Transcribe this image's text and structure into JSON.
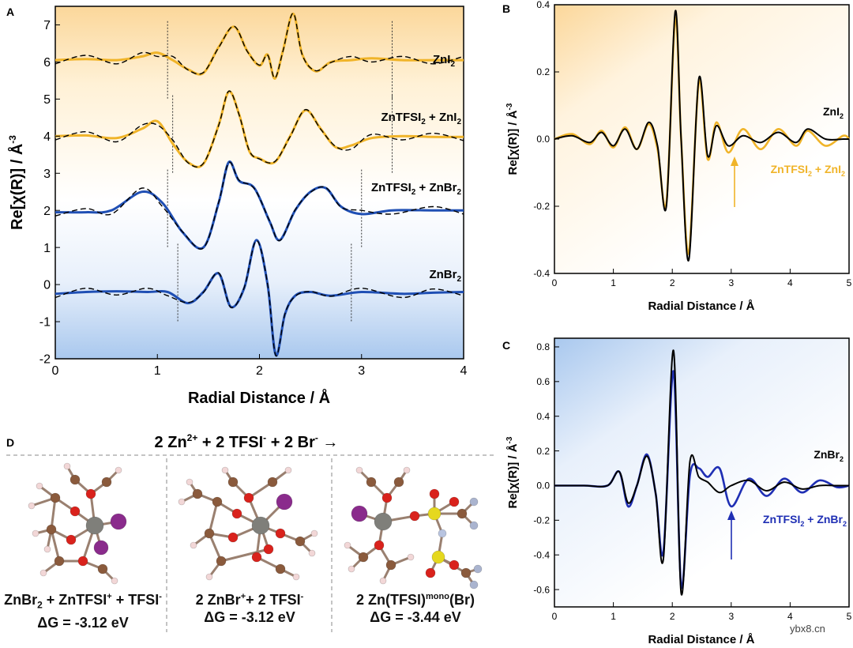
{
  "figure": {
    "panels": {
      "a": "A",
      "b": "B",
      "c": "C",
      "d": "D"
    },
    "watermark": "ybx8.cn"
  },
  "chart_data": [
    {
      "id": "A",
      "type": "line",
      "xlabel": "Radial Distance / Å",
      "ylabel": "Re[χ(R)] / Å⁻³",
      "xlim": [
        0,
        4
      ],
      "ylim": [
        -2,
        7.5
      ],
      "xticks": [
        "0",
        "1",
        "2",
        "3",
        "4"
      ],
      "yticks": [
        "-2",
        "-1",
        "0",
        "1",
        "2",
        "3",
        "4",
        "5",
        "6",
        "7"
      ],
      "series": [
        {
          "name": "ZnI₂",
          "color": "#f0b429",
          "offset": 6,
          "x": [
            0,
            0.3,
            0.6,
            0.85,
            1.0,
            1.15,
            1.3,
            1.45,
            1.6,
            1.75,
            1.88,
            2.0,
            2.08,
            2.15,
            2.23,
            2.33,
            2.42,
            2.55,
            2.7,
            2.9,
            3.1,
            3.4,
            3.7,
            4.0
          ],
          "y": [
            6.05,
            6.08,
            6.05,
            6.15,
            6.25,
            6.05,
            5.8,
            5.7,
            6.4,
            6.95,
            6.3,
            5.9,
            6.2,
            5.55,
            6.3,
            7.3,
            6.2,
            5.75,
            6.0,
            6.05,
            6.1,
            6.05,
            6.05,
            6.05
          ]
        },
        {
          "name": "ZnTFSI₂ + ZnI₂",
          "color": "#f0b429",
          "offset": 4,
          "x": [
            0,
            0.3,
            0.6,
            0.85,
            1.0,
            1.15,
            1.3,
            1.45,
            1.6,
            1.7,
            1.8,
            1.9,
            2.0,
            2.15,
            2.3,
            2.45,
            2.6,
            2.75,
            2.9,
            3.1,
            3.4,
            3.7,
            4.0
          ],
          "y": [
            4.0,
            4.02,
            3.95,
            4.2,
            4.4,
            3.8,
            3.3,
            3.25,
            4.3,
            5.2,
            4.6,
            3.6,
            3.4,
            3.3,
            4.0,
            4.7,
            4.2,
            3.7,
            3.75,
            3.95,
            4.0,
            3.98,
            3.98
          ]
        },
        {
          "name": "ZnTFSI₂ + ZnBr₂",
          "color": "#1f4fb4",
          "offset": 2,
          "x": [
            0,
            0.3,
            0.55,
            0.85,
            1.05,
            1.25,
            1.45,
            1.6,
            1.7,
            1.8,
            1.95,
            2.1,
            2.2,
            2.35,
            2.5,
            2.65,
            2.8,
            3.0,
            3.3,
            3.7,
            4.0
          ],
          "y": [
            1.95,
            1.95,
            2.0,
            2.5,
            2.2,
            1.4,
            1.0,
            2.2,
            3.3,
            2.8,
            2.6,
            1.7,
            1.2,
            2.0,
            2.5,
            2.6,
            2.1,
            1.9,
            2.0,
            2.0,
            2.0
          ]
        },
        {
          "name": "ZnBr₂",
          "color": "#1f4fb4",
          "offset": 0,
          "x": [
            0,
            0.3,
            0.6,
            0.9,
            1.1,
            1.3,
            1.45,
            1.6,
            1.72,
            1.85,
            1.97,
            2.08,
            2.16,
            2.25,
            2.35,
            2.5,
            2.7,
            3.0,
            3.4,
            3.7,
            4.0
          ],
          "y": [
            -0.25,
            -0.2,
            -0.18,
            -0.2,
            -0.2,
            -0.5,
            -0.2,
            0.3,
            -0.6,
            -0.1,
            1.2,
            0.0,
            -1.9,
            -0.8,
            -0.3,
            -0.2,
            -0.3,
            -0.2,
            -0.25,
            -0.22,
            -0.2
          ]
        }
      ],
      "fit_style": "black dashed",
      "window_lines": [
        [
          1.1,
          3.3
        ],
        [
          1.15,
          3.3
        ],
        [
          1.1,
          3.0
        ],
        [
          1.2,
          2.9
        ]
      ]
    },
    {
      "id": "B",
      "type": "line",
      "xlabel": "Radial Distance / Å",
      "ylabel": "Re[χ(R)] / Å⁻³",
      "xlim": [
        0,
        5
      ],
      "ylim": [
        -0.4,
        0.4
      ],
      "xticks": [
        "0",
        "1",
        "2",
        "3",
        "4",
        "5"
      ],
      "yticks": [
        "-0.4",
        "-0.2",
        "0.0",
        "0.2",
        "0.4"
      ],
      "legend": [
        {
          "label": "ZnI₂",
          "color": "#000000"
        },
        {
          "label": "ZnTFSI₂ + ZnI₂",
          "color": "#f0b429"
        }
      ],
      "series": [
        {
          "name": "ZnI₂",
          "color": "#000000",
          "x": [
            0,
            0.3,
            0.6,
            0.8,
            1.0,
            1.2,
            1.4,
            1.6,
            1.75,
            1.9,
            2.05,
            2.15,
            2.28,
            2.45,
            2.6,
            2.75,
            2.95,
            3.2,
            3.5,
            3.8,
            4.1,
            4.3,
            4.6,
            4.9,
            5.0
          ],
          "y": [
            0.0,
            0.01,
            -0.01,
            0.02,
            -0.02,
            0.03,
            -0.03,
            0.05,
            -0.02,
            -0.2,
            0.38,
            0.0,
            -0.36,
            0.18,
            -0.05,
            0.04,
            -0.02,
            0.01,
            -0.01,
            0.02,
            -0.01,
            0.03,
            0.0,
            0.0,
            0.0
          ]
        },
        {
          "name": "ZnTFSI₂ + ZnI₂",
          "color": "#f0b429",
          "x": [
            0,
            0.3,
            0.6,
            0.8,
            1.0,
            1.2,
            1.4,
            1.6,
            1.75,
            1.9,
            2.05,
            2.15,
            2.28,
            2.45,
            2.6,
            2.75,
            2.95,
            3.2,
            3.5,
            3.8,
            4.1,
            4.3,
            4.6,
            4.9,
            5.0
          ],
          "y": [
            0.0,
            0.015,
            -0.015,
            0.025,
            -0.025,
            0.035,
            -0.03,
            0.045,
            -0.03,
            -0.19,
            0.36,
            0.0,
            -0.34,
            0.17,
            -0.06,
            0.05,
            -0.04,
            0.03,
            -0.03,
            0.03,
            -0.02,
            0.025,
            -0.02,
            0.01,
            0.0
          ]
        }
      ]
    },
    {
      "id": "C",
      "type": "line",
      "xlabel": "Radial Distance / Å",
      "ylabel": "Re[χ(R)] / Å⁻³",
      "xlim": [
        0,
        5
      ],
      "ylim": [
        -0.7,
        0.85
      ],
      "xticks": [
        "0",
        "1",
        "2",
        "3",
        "4",
        "5"
      ],
      "yticks": [
        "-0.6",
        "-0.4",
        "-0.2",
        "0.0",
        "0.2",
        "0.4",
        "0.6",
        "0.8"
      ],
      "legend": [
        {
          "label": "ZnBr₂",
          "color": "#000000"
        },
        {
          "label": "ZnTFSI₂ + ZnBr₂",
          "color": "#1f2fb4"
        }
      ],
      "series": [
        {
          "name": "ZnBr₂",
          "color": "#000000",
          "x": [
            0,
            0.5,
            0.9,
            1.1,
            1.25,
            1.4,
            1.57,
            1.72,
            1.85,
            2.02,
            2.15,
            2.3,
            2.45,
            2.6,
            2.8,
            3.0,
            3.3,
            3.6,
            3.9,
            4.2,
            4.5,
            4.8,
            5.0
          ],
          "y": [
            0.0,
            0.0,
            0.0,
            0.08,
            -0.1,
            0.0,
            0.17,
            -0.05,
            -0.42,
            0.78,
            -0.62,
            0.14,
            0.05,
            0.02,
            -0.04,
            0.0,
            0.03,
            -0.03,
            0.02,
            -0.02,
            0.0,
            0.0,
            0.0
          ]
        },
        {
          "name": "ZnTFSI₂ + ZnBr₂",
          "color": "#1f2fb4",
          "x": [
            0,
            0.5,
            0.9,
            1.1,
            1.25,
            1.4,
            1.57,
            1.72,
            1.85,
            2.02,
            2.15,
            2.3,
            2.45,
            2.6,
            2.8,
            3.0,
            3.3,
            3.6,
            3.9,
            4.2,
            4.5,
            4.8,
            5.0
          ],
          "y": [
            0.0,
            0.0,
            0.0,
            0.08,
            -0.12,
            0.0,
            0.18,
            -0.05,
            -0.38,
            0.66,
            -0.58,
            0.06,
            0.1,
            0.05,
            0.1,
            -0.12,
            0.04,
            -0.06,
            0.04,
            -0.04,
            0.03,
            -0.01,
            0.0
          ]
        }
      ]
    }
  ],
  "panel_d": {
    "equation": "2 Zn²⁺ + 2 TFSI⁻ + 2 Br⁻ →",
    "structures": [
      {
        "caption": "ZnBr₂ + ZnTFSI⁺ + TFSI⁻",
        "energy": "ΔG = -3.12 eV"
      },
      {
        "caption": "2 ZnBr⁺+ 2 TFSI⁻",
        "energy": "ΔG = -3.12 eV"
      },
      {
        "caption": "2 Zn(TFSI)ᵐᵒⁿᵒ(Br)",
        "energy": "ΔG = -3.44 eV"
      }
    ]
  }
}
